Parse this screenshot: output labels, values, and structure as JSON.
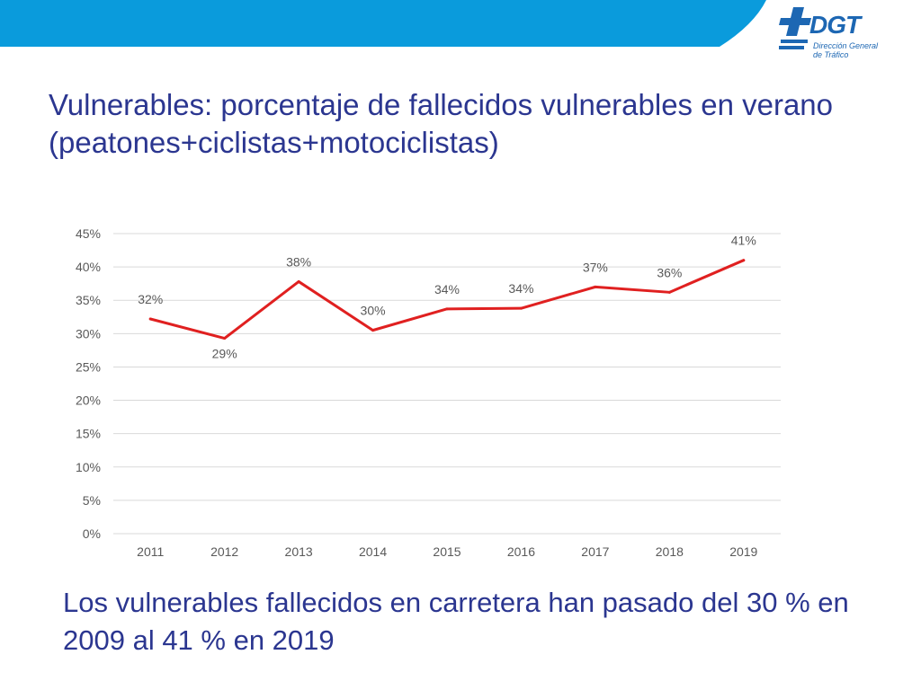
{
  "slide": {
    "title": "Vulnerables: porcentaje de fallecidos vulnerables en verano (peatones+ciclistas+motociclistas)",
    "conclusion": "Los vulnerables fallecidos en carretera han pasado del 30 % en 2009 al 41 % en 2019"
  },
  "logo": {
    "brand": "DGT",
    "subtitle_line1": "Dirección General",
    "subtitle_line2": "de Tráfico"
  },
  "colors": {
    "banner": "#0a9bdc",
    "title": "#2b3690",
    "line": "#e02020",
    "logo": "#1d67b3",
    "grid": "#d9d9d9",
    "axis_text": "#595959"
  },
  "chart_data": {
    "type": "line",
    "title": "",
    "xlabel": "",
    "ylabel": "",
    "categories": [
      "2011",
      "2012",
      "2013",
      "2014",
      "2015",
      "2016",
      "2017",
      "2018",
      "2019"
    ],
    "series": [
      {
        "name": "Vulnerables",
        "values": [
          32.2,
          29.3,
          37.8,
          30.5,
          33.7,
          33.8,
          37.0,
          36.2,
          41.0
        ],
        "labels": [
          "32%",
          "29%",
          "38%",
          "30%",
          "34%",
          "34%",
          "37%",
          "36%",
          "41%"
        ]
      }
    ],
    "ylim": [
      0,
      45
    ],
    "yticks": [
      0,
      5,
      10,
      15,
      20,
      25,
      30,
      35,
      40,
      45
    ],
    "ytick_labels": [
      "0%",
      "5%",
      "10%",
      "15%",
      "20%",
      "25%",
      "30%",
      "35%",
      "40%",
      "45%"
    ],
    "grid": true,
    "legend": "none"
  }
}
